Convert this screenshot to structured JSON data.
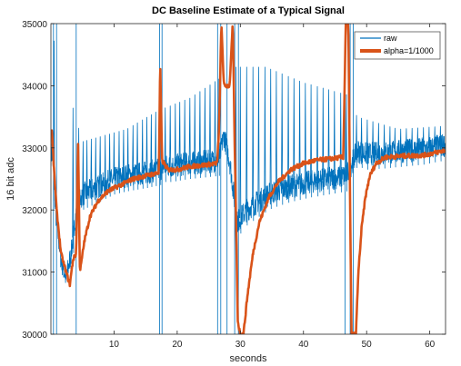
{
  "chart_data": {
    "type": "line",
    "title": "DC Baseline Estimate of a Typical Signal",
    "xlabel": "seconds",
    "ylabel": "16 bit adc",
    "xlim": [
      0,
      62.5
    ],
    "ylim": [
      30000,
      35000
    ],
    "xticks": [
      10,
      20,
      30,
      40,
      50,
      60
    ],
    "yticks": [
      30000,
      31000,
      32000,
      33000,
      34000,
      35000
    ],
    "grid": false,
    "legend": "top-right",
    "series": [
      {
        "name": "raw",
        "color": "#0072BD",
        "style": "thin",
        "baseline": [
          [
            0.2,
            32900
          ],
          [
            0.8,
            31900
          ],
          [
            1.6,
            31200
          ],
          [
            2.4,
            30900
          ],
          [
            3.2,
            31300
          ],
          [
            3.9,
            31900
          ],
          [
            4.4,
            32100
          ],
          [
            5,
            32250
          ],
          [
            6,
            32300
          ],
          [
            8,
            32400
          ],
          [
            10,
            32500
          ],
          [
            12,
            32550
          ],
          [
            15,
            32600
          ],
          [
            17.3,
            32650
          ],
          [
            17.7,
            32700
          ],
          [
            19,
            32700
          ],
          [
            22,
            32750
          ],
          [
            25,
            32780
          ],
          [
            26.6,
            32800
          ],
          [
            27.4,
            33200
          ],
          [
            28.3,
            32800
          ],
          [
            29.5,
            31800
          ],
          [
            30.2,
            31900
          ],
          [
            31,
            32000
          ],
          [
            33,
            32150
          ],
          [
            35,
            32280
          ],
          [
            38,
            32380
          ],
          [
            41,
            32450
          ],
          [
            44,
            32500
          ],
          [
            46.8,
            32550
          ],
          [
            48.5,
            32950
          ],
          [
            50,
            32900
          ],
          [
            53,
            32920
          ],
          [
            56,
            32950
          ],
          [
            59,
            32980
          ],
          [
            62.5,
            33050
          ]
        ],
        "spikes": [
          0.5,
          3.5,
          4.4,
          5.1,
          5.7,
          6.4,
          7.1,
          7.8,
          8.6,
          9.3,
          10.0,
          10.8,
          11.5,
          12.2,
          13.0,
          13.7,
          14.5,
          15.2,
          15.9,
          16.6,
          17.3,
          18.1,
          18.9,
          19.7,
          20.4,
          21.2,
          22.0,
          22.8,
          23.6,
          24.4,
          25.2,
          26.0,
          26.6,
          29.3,
          30.0,
          31.0,
          32.0,
          32.9,
          33.9,
          34.8,
          35.7,
          36.6,
          37.6,
          38.5,
          39.4,
          40.3,
          41.2,
          42.2,
          43.1,
          44.0,
          44.9,
          45.9,
          46.8,
          48.4,
          49.2,
          50.1,
          51.0,
          51.9,
          52.8,
          53.7,
          54.5,
          55.4,
          56.3,
          57.2,
          58.1,
          59.0,
          59.9,
          60.8,
          61.7
        ],
        "spike_top": [
          [
            0,
            34900
          ],
          [
            5,
            33100
          ],
          [
            12,
            33300
          ],
          [
            17,
            33600
          ],
          [
            22,
            33800
          ],
          [
            26.5,
            34100
          ],
          [
            29,
            34300
          ],
          [
            34,
            34300
          ],
          [
            40,
            34050
          ],
          [
            47,
            33850
          ],
          [
            48.5,
            33500
          ],
          [
            55,
            33300
          ],
          [
            62.5,
            33350
          ]
        ],
        "outages": [
          [
            0.4,
            30000,
            35000
          ],
          [
            0.9,
            30000,
            35000
          ],
          [
            4.0,
            30000,
            35000
          ],
          [
            17.2,
            30000,
            35000
          ],
          [
            17.6,
            30000,
            35000
          ],
          [
            26.4,
            30000,
            35000
          ],
          [
            26.9,
            30000,
            35000
          ],
          [
            27.9,
            30000,
            35000
          ],
          [
            29.1,
            30000,
            35000
          ],
          [
            29.7,
            30000,
            35000
          ],
          [
            46.6,
            30000,
            35000
          ],
          [
            47.4,
            30000,
            35000
          ],
          [
            47.9,
            30000,
            35000
          ]
        ]
      },
      {
        "name": "alpha=1/1000",
        "color": "#D95319",
        "style": "thick",
        "points": [
          [
            0.15,
            33300
          ],
          [
            0.4,
            32800
          ],
          [
            0.9,
            32000
          ],
          [
            1.6,
            31300
          ],
          [
            2.4,
            31000
          ],
          [
            3.0,
            30800
          ],
          [
            3.5,
            31200
          ],
          [
            4.0,
            31300
          ],
          [
            4.3,
            33100
          ],
          [
            4.6,
            31000
          ],
          [
            5.3,
            31500
          ],
          [
            6.2,
            31900
          ],
          [
            7.5,
            32150
          ],
          [
            9,
            32300
          ],
          [
            11,
            32400
          ],
          [
            13,
            32500
          ],
          [
            15,
            32550
          ],
          [
            17.1,
            32600
          ],
          [
            17.3,
            34400
          ],
          [
            17.6,
            32800
          ],
          [
            18.5,
            32650
          ],
          [
            20,
            32650
          ],
          [
            22,
            32700
          ],
          [
            24,
            32720
          ],
          [
            26.3,
            32750
          ],
          [
            26.6,
            33200
          ],
          [
            27,
            35000
          ],
          [
            27.4,
            34000
          ],
          [
            27.8,
            34000
          ],
          [
            28.3,
            34000
          ],
          [
            28.8,
            35000
          ],
          [
            29.2,
            32500
          ],
          [
            29.6,
            30200
          ],
          [
            30.0,
            30000
          ],
          [
            30.5,
            30000
          ],
          [
            31.1,
            30600
          ],
          [
            32,
            31300
          ],
          [
            33,
            31800
          ],
          [
            34.5,
            32200
          ],
          [
            36,
            32450
          ],
          [
            38,
            32650
          ],
          [
            40,
            32750
          ],
          [
            42,
            32800
          ],
          [
            44,
            32820
          ],
          [
            46.3,
            32850
          ],
          [
            46.7,
            35000
          ],
          [
            47.1,
            35000
          ],
          [
            47.6,
            30000
          ],
          [
            48.3,
            30000
          ],
          [
            48.7,
            31000
          ],
          [
            49.2,
            31700
          ],
          [
            49.8,
            32200
          ],
          [
            50.5,
            32550
          ],
          [
            51.5,
            32750
          ],
          [
            53,
            32850
          ],
          [
            56,
            32870
          ],
          [
            59,
            32880
          ],
          [
            62.5,
            32960
          ]
        ]
      }
    ]
  }
}
